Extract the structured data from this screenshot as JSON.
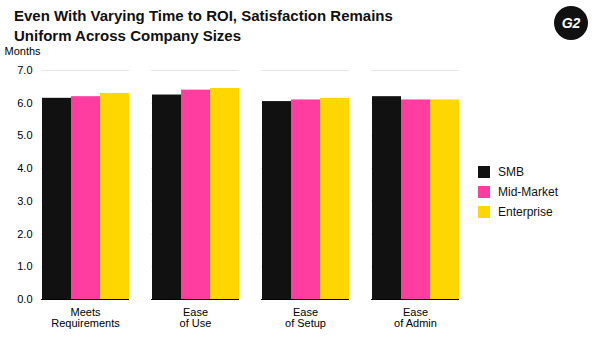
{
  "chart_data": {
    "type": "bar",
    "title": "Even With Varying Time to ROI, Satisfaction Remains\nUniform Across Company Sizes",
    "ylabel": "Months",
    "categories": [
      "Meets\nRequirements",
      "Ease\nof Use",
      "Ease\nof Setup",
      "Ease\nof Admin"
    ],
    "series": [
      {
        "name": "SMB",
        "color": "#111111",
        "values": [
          6.15,
          6.25,
          6.05,
          6.2
        ]
      },
      {
        "name": "Mid-Market",
        "color": "#FF3DA0",
        "values": [
          6.2,
          6.4,
          6.1,
          6.1
        ]
      },
      {
        "name": "Enterprise",
        "color": "#FFD700",
        "values": [
          6.3,
          6.45,
          6.15,
          6.1
        ]
      }
    ],
    "ylim": [
      0,
      7
    ],
    "yticks": [
      0,
      1,
      2,
      3,
      4,
      5,
      6,
      7
    ],
    "grid": true,
    "legend": "right",
    "annotations": [
      "G2"
    ]
  }
}
